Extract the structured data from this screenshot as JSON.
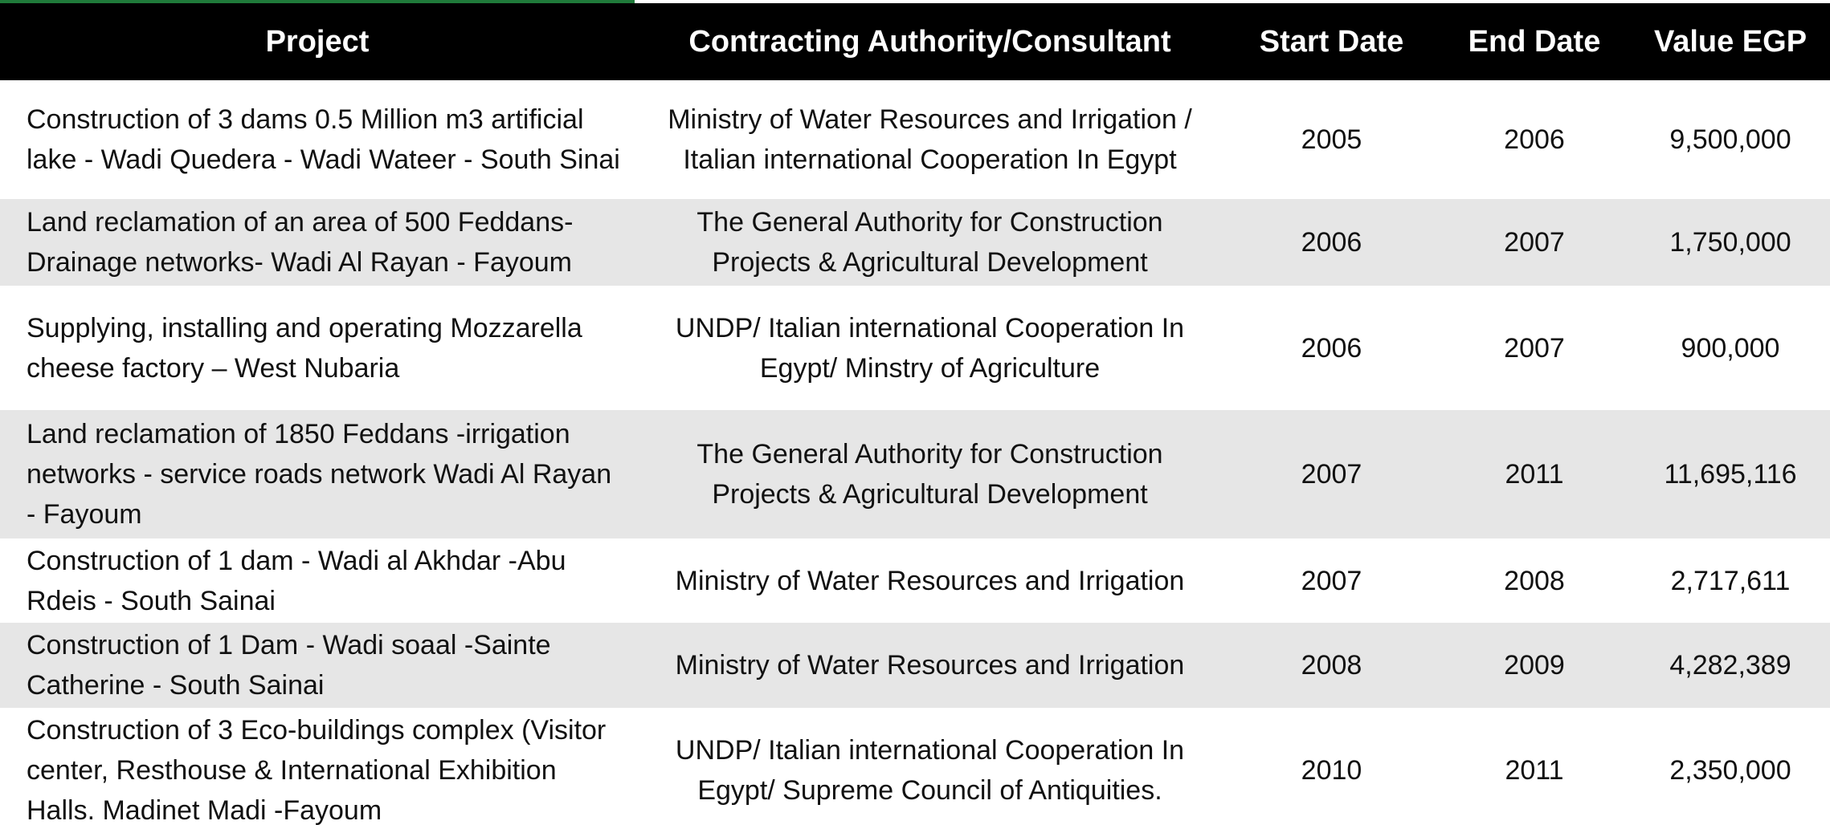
{
  "accent_color": "#1f7a3a",
  "header_background": "#000000",
  "stripe_color": "#e6e6e6",
  "columns": [
    "Project",
    "Contracting Authority/Consultant",
    "Start Date",
    "End Date",
    "Value EGP"
  ],
  "rows": [
    {
      "project": "Construction of 3 dams 0.5 Million m3 artificial lake - Wadi Quedera - Wadi Wateer - South Sinai",
      "authority": "Ministry of Water Resources and Irrigation / Italian international Cooperation In Egypt",
      "start": "2005",
      "end": "2006",
      "value": "9,500,000"
    },
    {
      "project": "Land reclamation of an area of 500 Feddans- Drainage networks- Wadi Al Rayan - Fayoum",
      "authority": "The General Authority for Construction Projects & Agricultural Development",
      "start": "2006",
      "end": "2007",
      "value": "1,750,000"
    },
    {
      "project": "Supplying, installing and operating Mozzarella cheese factory – West Nubaria",
      "authority": "UNDP/ Italian international Cooperation In Egypt/ Minstry of Agriculture",
      "start": "2006",
      "end": "2007",
      "value": "900,000"
    },
    {
      "project": "Land reclamation of 1850 Feddans -irrigation networks - service roads network Wadi Al Rayan - Fayoum",
      "authority": "The General Authority for Construction Projects & Agricultural Development",
      "start": "2007",
      "end": "2011",
      "value": "11,695,116"
    },
    {
      "project": "Construction of 1 dam - Wadi al Akhdar -Abu Rdeis - South Sainai",
      "authority": "Ministry of Water Resources and Irrigation",
      "start": "2007",
      "end": "2008",
      "value": "2,717,611"
    },
    {
      "project": "Construction of 1 Dam - Wadi soaal -Sainte Catherine - South Sainai",
      "authority": "Ministry of Water Resources and Irrigation",
      "start": "2008",
      "end": "2009",
      "value": "4,282,389"
    },
    {
      "project": "Construction of 3 Eco-buildings complex (Visitor center, Resthouse & International Exhibition Halls. Madinet Madi -Fayoum",
      "authority": "UNDP/ Italian international Cooperation In Egypt/ Supreme Council of Antiquities.",
      "start": "2010",
      "end": "2011",
      "value": "2,350,000"
    }
  ]
}
